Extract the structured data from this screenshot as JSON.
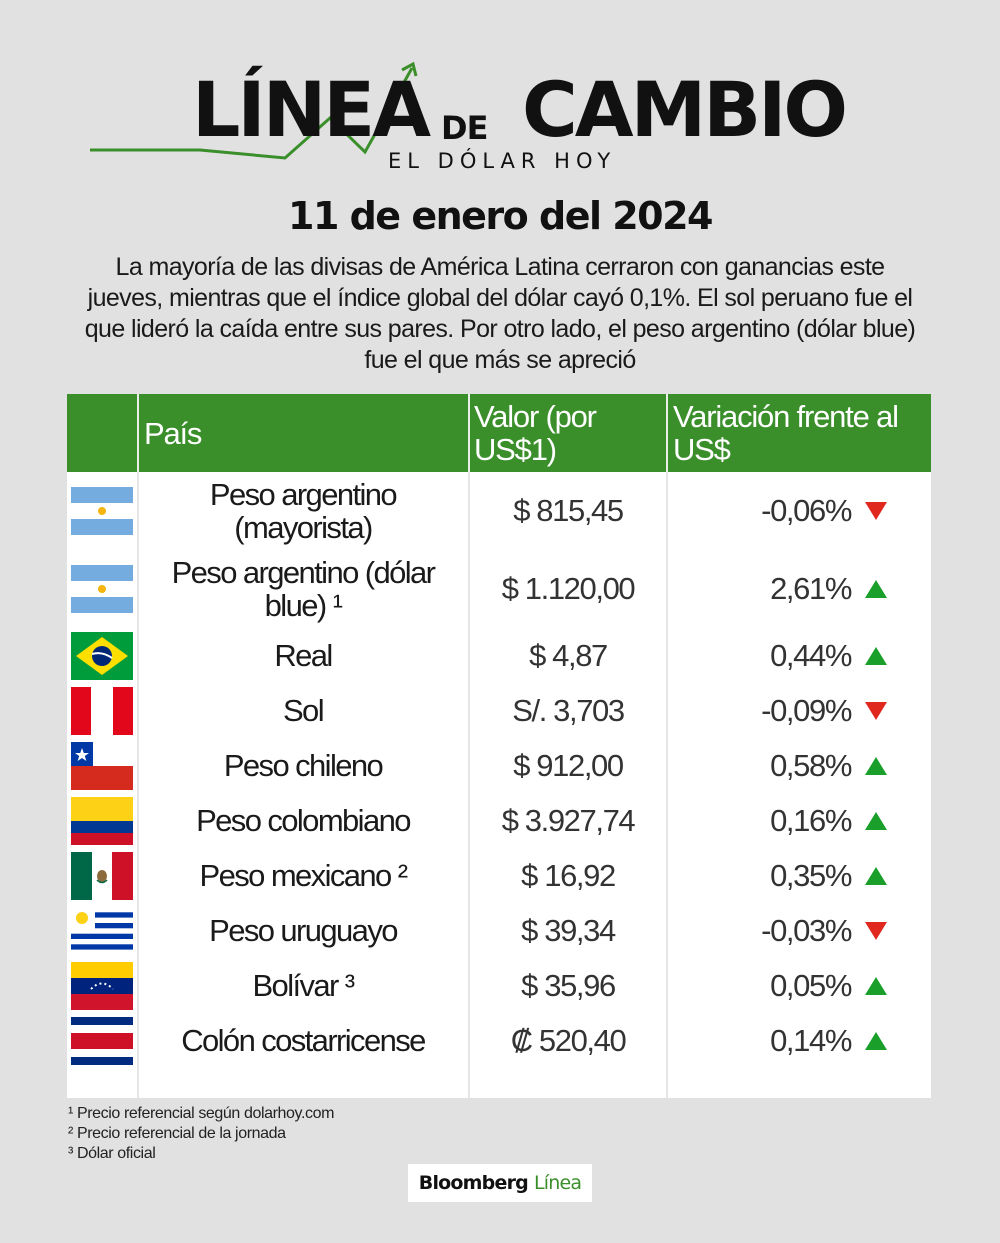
{
  "logo": {
    "word1": "LÍNEA",
    "word2": "DE",
    "word3": "CAMBIO",
    "subtitle": "EL DÓLAR HOY",
    "accent_color": "#3a8f2a"
  },
  "date": "11 de enero del 2024",
  "intro": "La mayoría de las divisas de América Latina cerraron con ganancias este jueves, mientras que el índice global del dólar cayó 0,1%. El sol peruano fue el que lideró la caída entre sus pares. Por otro lado, el peso argentino (dólar blue) fue el que más se apreció",
  "table": {
    "header_color": "#3a8f2a",
    "headers": {
      "pais": "País",
      "valor": "Valor (por US$1)",
      "variacion": "Variación frente al US$"
    },
    "rows": [
      {
        "flag": "argentina-flag",
        "name": "Peso argentino (mayorista)",
        "value": "$ 815,45",
        "change": "-0,06%",
        "direction": "down"
      },
      {
        "flag": "argentina-flag",
        "name": "Peso argentino (dólar blue) ¹",
        "value": "$ 1.120,00",
        "change": "2,61%",
        "direction": "up"
      },
      {
        "flag": "brazil-flag",
        "name": "Real",
        "value": "$ 4,87",
        "change": "0,44%",
        "direction": "up"
      },
      {
        "flag": "peru-flag",
        "name": "Sol",
        "value": "S/. 3,703",
        "change": "-0,09%",
        "direction": "down"
      },
      {
        "flag": "chile-flag",
        "name": "Peso chileno",
        "value": "$ 912,00",
        "change": "0,58%",
        "direction": "up"
      },
      {
        "flag": "colombia-flag",
        "name": "Peso colombiano",
        "value": "$ 3.927,74",
        "change": "0,16%",
        "direction": "up"
      },
      {
        "flag": "mexico-flag",
        "name": "Peso mexicano ²",
        "value": "$ 16,92",
        "change": "0,35%",
        "direction": "up"
      },
      {
        "flag": "uruguay-flag",
        "name": "Peso uruguayo",
        "value": "$ 39,34",
        "change": "-0,03%",
        "direction": "down"
      },
      {
        "flag": "venezuela-flag",
        "name": "Bolívar ³",
        "value": "$ 35,96",
        "change": "0,05%",
        "direction": "up"
      },
      {
        "flag": "costa-rica-flag",
        "name": "Colón costarricense",
        "value": "₡ 520,40",
        "change": "0,14%",
        "direction": "up"
      }
    ]
  },
  "footnotes": [
    "¹ Precio referencial según dolarhoy.com",
    "² Precio referencial de la jornada",
    "³ Dólar oficial"
  ],
  "brand": {
    "part1": "Bloomberg",
    "part2": "Línea"
  }
}
